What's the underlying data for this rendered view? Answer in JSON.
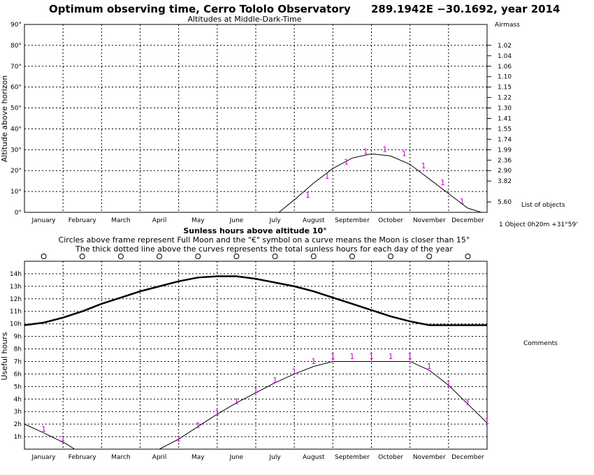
{
  "header": {
    "title": "Optimum observing time, Cerro Tololo Observatory",
    "coords": "289.1942E −30.1692, year 2014"
  },
  "right_panel": {
    "airmass_title": "Airmass",
    "list_title": "List of objects",
    "object_entry": "1 Object  0h20m +31°59'",
    "comments_title": "Comments"
  },
  "top_panel": {
    "subtitle": "Altitudes at Middle-Dark-Time",
    "ylabel": "Altitude above horizon"
  },
  "bottom_panel": {
    "title": "Sunless hours above altitude 10°",
    "note1": "Circles above frame represent Full Moon and the \"€\" symbol on a curve means the Moon is closer than 15°",
    "note2": "The thick dotted line above the curves represents the total sunless hours for each day of the year",
    "ylabel": "Useful hours"
  },
  "months": [
    "January",
    "February",
    "March",
    "April",
    "May",
    "June",
    "July",
    "August",
    "September",
    "October",
    "November",
    "December"
  ],
  "chart_data": [
    {
      "type": "line",
      "title": "Altitudes at Middle-Dark-Time",
      "xlabel": "",
      "ylabel": "Altitude above horizon",
      "ylim": [
        0,
        90
      ],
      "yticks": [
        "0°",
        "10°",
        "20°",
        "30°",
        "40°",
        "50°",
        "60°",
        "70°",
        "80°",
        "90°"
      ],
      "y2label": "Airmass",
      "airmass_ticks": [
        {
          "alt": 5,
          "label": "5.60"
        },
        {
          "alt": 15,
          "label": "3.82"
        },
        {
          "alt": 20,
          "label": "2.90"
        },
        {
          "alt": 25,
          "label": "2.36"
        },
        {
          "alt": 30,
          "label": "1.99"
        },
        {
          "alt": 35,
          "label": "1.74"
        },
        {
          "alt": 40,
          "label": "1.55"
        },
        {
          "alt": 45,
          "label": "1.41"
        },
        {
          "alt": 50,
          "label": "1.30"
        },
        {
          "alt": 55,
          "label": "1.22"
        },
        {
          "alt": 60,
          "label": "1.15"
        },
        {
          "alt": 65,
          "label": "1.10"
        },
        {
          "alt": 70,
          "label": "1.06"
        },
        {
          "alt": 75,
          "label": "1.04"
        },
        {
          "alt": 80,
          "label": "1.02"
        }
      ],
      "grid": true,
      "series": [
        {
          "x": [
            6.6,
            7.0,
            7.5,
            8.0,
            8.5,
            9.0,
            9.5,
            10.0,
            10.5,
            11.0,
            11.5,
            11.85
          ],
          "values": [
            0,
            6,
            14,
            21,
            26,
            28,
            27,
            23,
            16,
            9,
            2,
            0
          ],
          "markers": [
            {
              "x": 7.35,
              "y": 7
            },
            {
              "x": 7.85,
              "y": 16
            },
            {
              "x": 8.35,
              "y": 23
            },
            {
              "x": 8.85,
              "y": 28
            },
            {
              "x": 9.35,
              "y": 29
            },
            {
              "x": 9.85,
              "y": 27
            },
            {
              "x": 10.35,
              "y": 21
            },
            {
              "x": 10.85,
              "y": 13
            },
            {
              "x": 11.35,
              "y": 4
            }
          ],
          "marker_label": "1"
        }
      ]
    },
    {
      "type": "line",
      "title": "Sunless hours above altitude 10°",
      "xlabel": "",
      "ylabel": "Useful hours",
      "ylim": [
        0,
        15
      ],
      "yticks": [
        "1h",
        "2h",
        "3h",
        "4h",
        "5h",
        "6h",
        "7h",
        "8h",
        "9h",
        "10h",
        "11h",
        "12h",
        "13h",
        "14h"
      ],
      "grid": true,
      "full_moon_months": [
        0.5,
        1.5,
        2.5,
        3.5,
        4.5,
        5.5,
        6.5,
        7.5,
        8.5,
        9.5,
        10.5,
        11.5
      ],
      "series": [
        {
          "name": "total sunless hours",
          "x": [
            0,
            0.5,
            1,
            1.5,
            2,
            2.5,
            3,
            3.5,
            4,
            4.5,
            5,
            5.5,
            6,
            6.5,
            7,
            7.5,
            8,
            8.5,
            9,
            9.5,
            10,
            10.5,
            11,
            11.5,
            12
          ],
          "values": [
            9.9,
            10.1,
            10.5,
            11.0,
            11.6,
            12.1,
            12.6,
            13.0,
            13.4,
            13.7,
            13.8,
            13.8,
            13.6,
            13.3,
            13.0,
            12.6,
            12.1,
            11.6,
            11.1,
            10.6,
            10.2,
            9.9,
            9.9,
            9.9,
            9.9
          ]
        },
        {
          "name": "useful hours",
          "x": [
            0,
            0.5,
            1.1,
            1.3,
            3.5,
            4.0,
            4.5,
            5.0,
            5.5,
            6.0,
            6.5,
            7.0,
            7.5,
            8.0,
            8.5,
            9.0,
            9.5,
            10.0,
            10.5,
            11.0,
            11.5,
            12.0
          ],
          "values": [
            2.0,
            1.3,
            0.4,
            0,
            0,
            0.8,
            1.8,
            2.8,
            3.7,
            4.5,
            5.3,
            6.0,
            6.6,
            7.0,
            7.0,
            7.0,
            7.0,
            7.0,
            6.3,
            5.1,
            3.6,
            2.1
          ],
          "markers": [
            {
              "x": 0.5,
              "y": 1.4
            },
            {
              "x": 1.0,
              "y": 0.6
            },
            {
              "x": 4.0,
              "y": 0.6
            },
            {
              "x": 4.5,
              "y": 1.7
            },
            {
              "x": 5.0,
              "y": 2.7
            },
            {
              "x": 5.5,
              "y": 3.6
            },
            {
              "x": 6.0,
              "y": 4.5
            },
            {
              "x": 6.5,
              "y": 5.3
            },
            {
              "x": 7.0,
              "y": 6.0
            },
            {
              "x": 7.5,
              "y": 6.8
            },
            {
              "x": 8.0,
              "y": 7.2
            },
            {
              "x": 8.5,
              "y": 7.2
            },
            {
              "x": 9.0,
              "y": 7.2
            },
            {
              "x": 9.5,
              "y": 7.2
            },
            {
              "x": 10.0,
              "y": 7.2
            },
            {
              "x": 10.5,
              "y": 6.4
            },
            {
              "x": 11.0,
              "y": 5.0
            },
            {
              "x": 11.5,
              "y": 3.5
            },
            {
              "x": 12.0,
              "y": 2.0
            }
          ],
          "marker_label": "1"
        }
      ]
    }
  ]
}
